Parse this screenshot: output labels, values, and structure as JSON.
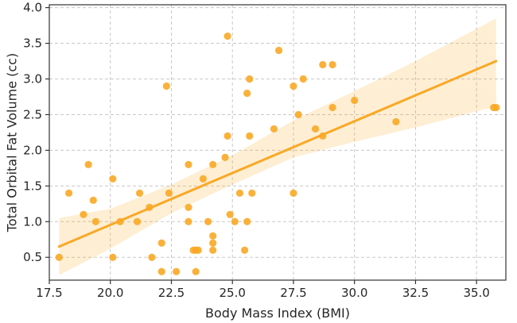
{
  "chart_data": {
    "type": "scatter",
    "title": "",
    "xlabel": "Body Mass Index (BMI)",
    "ylabel": "Total Orbital Fat Volume (cc)",
    "xlim": [
      17.5,
      36.2
    ],
    "ylim": [
      0.18,
      4.04
    ],
    "xticks": [
      17.5,
      20.0,
      22.5,
      25.0,
      27.5,
      30.0,
      32.5,
      35.0
    ],
    "xtick_labels": [
      "17.5",
      "20.0",
      "22.5",
      "25.0",
      "27.5",
      "30.0",
      "32.5",
      "35.0"
    ],
    "yticks": [
      0.5,
      1.0,
      1.5,
      2.0,
      2.5,
      3.0,
      3.5,
      4.0
    ],
    "ytick_labels": [
      "0.5",
      "1.0",
      "1.5",
      "2.0",
      "2.5",
      "3.0",
      "3.5",
      "4.0"
    ],
    "grid": true,
    "colors": {
      "points": "#f9a825",
      "line": "#f9a825",
      "band": "#f9a825"
    },
    "points": [
      {
        "x": 17.9,
        "y": 0.5
      },
      {
        "x": 18.3,
        "y": 1.4
      },
      {
        "x": 18.9,
        "y": 1.1
      },
      {
        "x": 19.1,
        "y": 1.8
      },
      {
        "x": 19.3,
        "y": 1.3
      },
      {
        "x": 19.4,
        "y": 1.0
      },
      {
        "x": 20.1,
        "y": 1.6
      },
      {
        "x": 20.1,
        "y": 0.5
      },
      {
        "x": 20.4,
        "y": 1.0
      },
      {
        "x": 21.1,
        "y": 1.0
      },
      {
        "x": 21.2,
        "y": 1.4
      },
      {
        "x": 21.6,
        "y": 1.2
      },
      {
        "x": 21.7,
        "y": 0.5
      },
      {
        "x": 22.1,
        "y": 0.7
      },
      {
        "x": 22.1,
        "y": 0.3
      },
      {
        "x": 22.3,
        "y": 2.9
      },
      {
        "x": 22.4,
        "y": 1.4
      },
      {
        "x": 22.7,
        "y": 0.3
      },
      {
        "x": 23.2,
        "y": 1.8
      },
      {
        "x": 23.2,
        "y": 1.2
      },
      {
        "x": 23.2,
        "y": 1.0
      },
      {
        "x": 23.4,
        "y": 0.6
      },
      {
        "x": 23.5,
        "y": 0.6
      },
      {
        "x": 23.5,
        "y": 0.3
      },
      {
        "x": 23.6,
        "y": 0.6
      },
      {
        "x": 23.8,
        "y": 1.6
      },
      {
        "x": 24.0,
        "y": 1.0
      },
      {
        "x": 24.2,
        "y": 1.8
      },
      {
        "x": 24.2,
        "y": 0.8
      },
      {
        "x": 24.2,
        "y": 0.7
      },
      {
        "x": 24.2,
        "y": 0.6
      },
      {
        "x": 24.7,
        "y": 1.9
      },
      {
        "x": 24.8,
        "y": 3.6
      },
      {
        "x": 24.8,
        "y": 2.2
      },
      {
        "x": 24.9,
        "y": 1.1
      },
      {
        "x": 25.1,
        "y": 1.0
      },
      {
        "x": 25.3,
        "y": 1.4
      },
      {
        "x": 25.5,
        "y": 0.6
      },
      {
        "x": 25.6,
        "y": 2.8
      },
      {
        "x": 25.6,
        "y": 1.0
      },
      {
        "x": 25.7,
        "y": 3.0
      },
      {
        "x": 25.7,
        "y": 2.2
      },
      {
        "x": 25.8,
        "y": 1.4
      },
      {
        "x": 26.7,
        "y": 2.3
      },
      {
        "x": 26.9,
        "y": 3.4
      },
      {
        "x": 27.5,
        "y": 2.9
      },
      {
        "x": 27.5,
        "y": 1.4
      },
      {
        "x": 27.7,
        "y": 2.5
      },
      {
        "x": 27.9,
        "y": 3.0
      },
      {
        "x": 28.4,
        "y": 2.3
      },
      {
        "x": 28.7,
        "y": 3.2
      },
      {
        "x": 28.7,
        "y": 2.2
      },
      {
        "x": 29.1,
        "y": 3.2
      },
      {
        "x": 29.1,
        "y": 2.6
      },
      {
        "x": 30.0,
        "y": 2.7
      },
      {
        "x": 31.7,
        "y": 2.4
      },
      {
        "x": 35.7,
        "y": 2.6
      },
      {
        "x": 35.8,
        "y": 2.6
      }
    ],
    "regression": {
      "x": [
        17.9,
        35.8
      ],
      "y": [
        0.65,
        3.25
      ]
    },
    "confidence_band": {
      "x": [
        17.9,
        20.0,
        22.5,
        25.0,
        27.5,
        30.0,
        32.5,
        35.8
      ],
      "lower": [
        0.25,
        0.62,
        1.12,
        1.52,
        1.9,
        2.12,
        2.32,
        2.62
      ],
      "upper": [
        1.05,
        1.18,
        1.52,
        1.93,
        2.42,
        2.83,
        3.25,
        3.85
      ]
    }
  }
}
